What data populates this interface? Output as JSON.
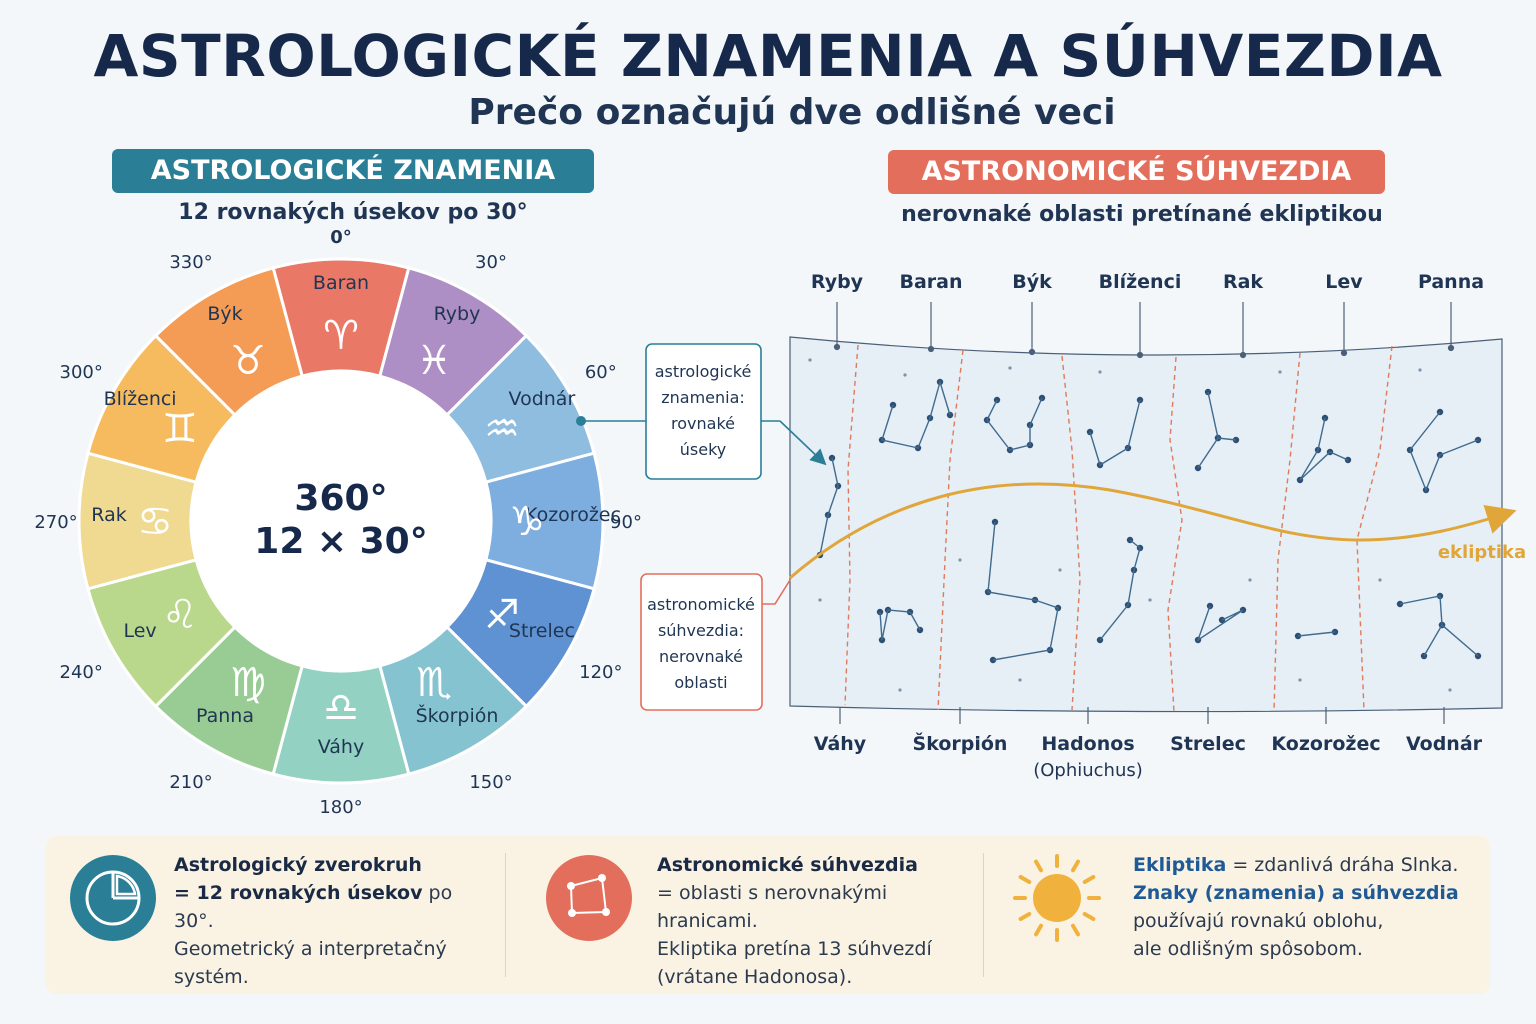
{
  "title": "ASTROLOGICKÉ ZNAMENIA A SÚHVEZDIA",
  "subtitle": "Prečo označujú dve odlišné veci",
  "left": {
    "header": "ASTROLOGICKÉ ZNAMENIA",
    "subheader": "12 rovnakých úsekov po 30°",
    "center_line1": "360°",
    "center_line2": "12 × 30°",
    "signs": [
      {
        "name": "Baran",
        "symbol": "♈",
        "color": "#ea7867"
      },
      {
        "name": "Ryby",
        "symbol": "♓",
        "color": "#ad8ec5"
      },
      {
        "name": "Vodnár",
        "symbol": "♒",
        "color": "#8fbde0"
      },
      {
        "name": "Kozorožec",
        "symbol": "♑",
        "color": "#7daedf"
      },
      {
        "name": "Strelec",
        "symbol": "♐",
        "color": "#5f92d2"
      },
      {
        "name": "Škorpión",
        "symbol": "♏",
        "color": "#86c3d0"
      },
      {
        "name": "Váhy",
        "symbol": "♎",
        "color": "#93d1c3"
      },
      {
        "name": "Panna",
        "symbol": "♍",
        "color": "#99cc95"
      },
      {
        "name": "Lev",
        "symbol": "♌",
        "color": "#b9d88c"
      },
      {
        "name": "Rak",
        "symbol": "♋",
        "color": "#f0d991"
      },
      {
        "name": "Blíženci",
        "symbol": "♊",
        "color": "#f6bb5f"
      },
      {
        "name": "Býk",
        "symbol": "♉",
        "color": "#f49b55"
      }
    ],
    "degree_labels": [
      "0°",
      "30°",
      "60°",
      "90°",
      "120°",
      "150°",
      "180°",
      "210°",
      "240°",
      "270°",
      "300°",
      "330°"
    ]
  },
  "right": {
    "header": "ASTRONOMICKÉ SÚHVEZDIA",
    "subheader": "nerovnaké oblasti pretínané ekliptikou",
    "top_labels": [
      "Ryby",
      "Baran",
      "Býk",
      "Blíženci",
      "Rak",
      "Lev",
      "Panna"
    ],
    "bottom_labels": [
      "Váhy",
      "Škorpión",
      "Hadonos",
      "Strelec",
      "Kozorožec",
      "Vodnár"
    ],
    "bottom_sublabel": "(Ophiuchus)",
    "ecliptic_label": "ekliptika",
    "callout_top": [
      "astrologické",
      "znamenia:",
      "rovnaké",
      "úseky"
    ],
    "callout_bottom": [
      "astronomické",
      "súhvezdia:",
      "nerovnaké",
      "oblasti"
    ]
  },
  "info": {
    "col1": {
      "title": "Astrologický zverokruh",
      "line2_bold": "= 12 rovnakých úsekov",
      "line2_rest": " po 30°.",
      "line3": "Geometrický a interpretačný",
      "line4": "systém."
    },
    "col2": {
      "title": "Astronomické súhvezdia",
      "line2": "= oblasti s nerovnakými hranicami.",
      "line3": "Ekliptika pretína 13 súhvezdí",
      "line4": "(vrátane Hadonosa)."
    },
    "col3": {
      "title_hl": "Ekliptika",
      "title_rest": " = zdanlivá dráha Slnka.",
      "line2": "Znaky (znamenia) a súhvezdia",
      "line3": "používajú rovnakú oblohu,",
      "line4": "ale odlišným spôsobom."
    }
  },
  "colors": {
    "teal": "#2a7f97",
    "coral": "#e36e5c",
    "ecliptic": "#e0a63a",
    "navy": "#16294a"
  }
}
